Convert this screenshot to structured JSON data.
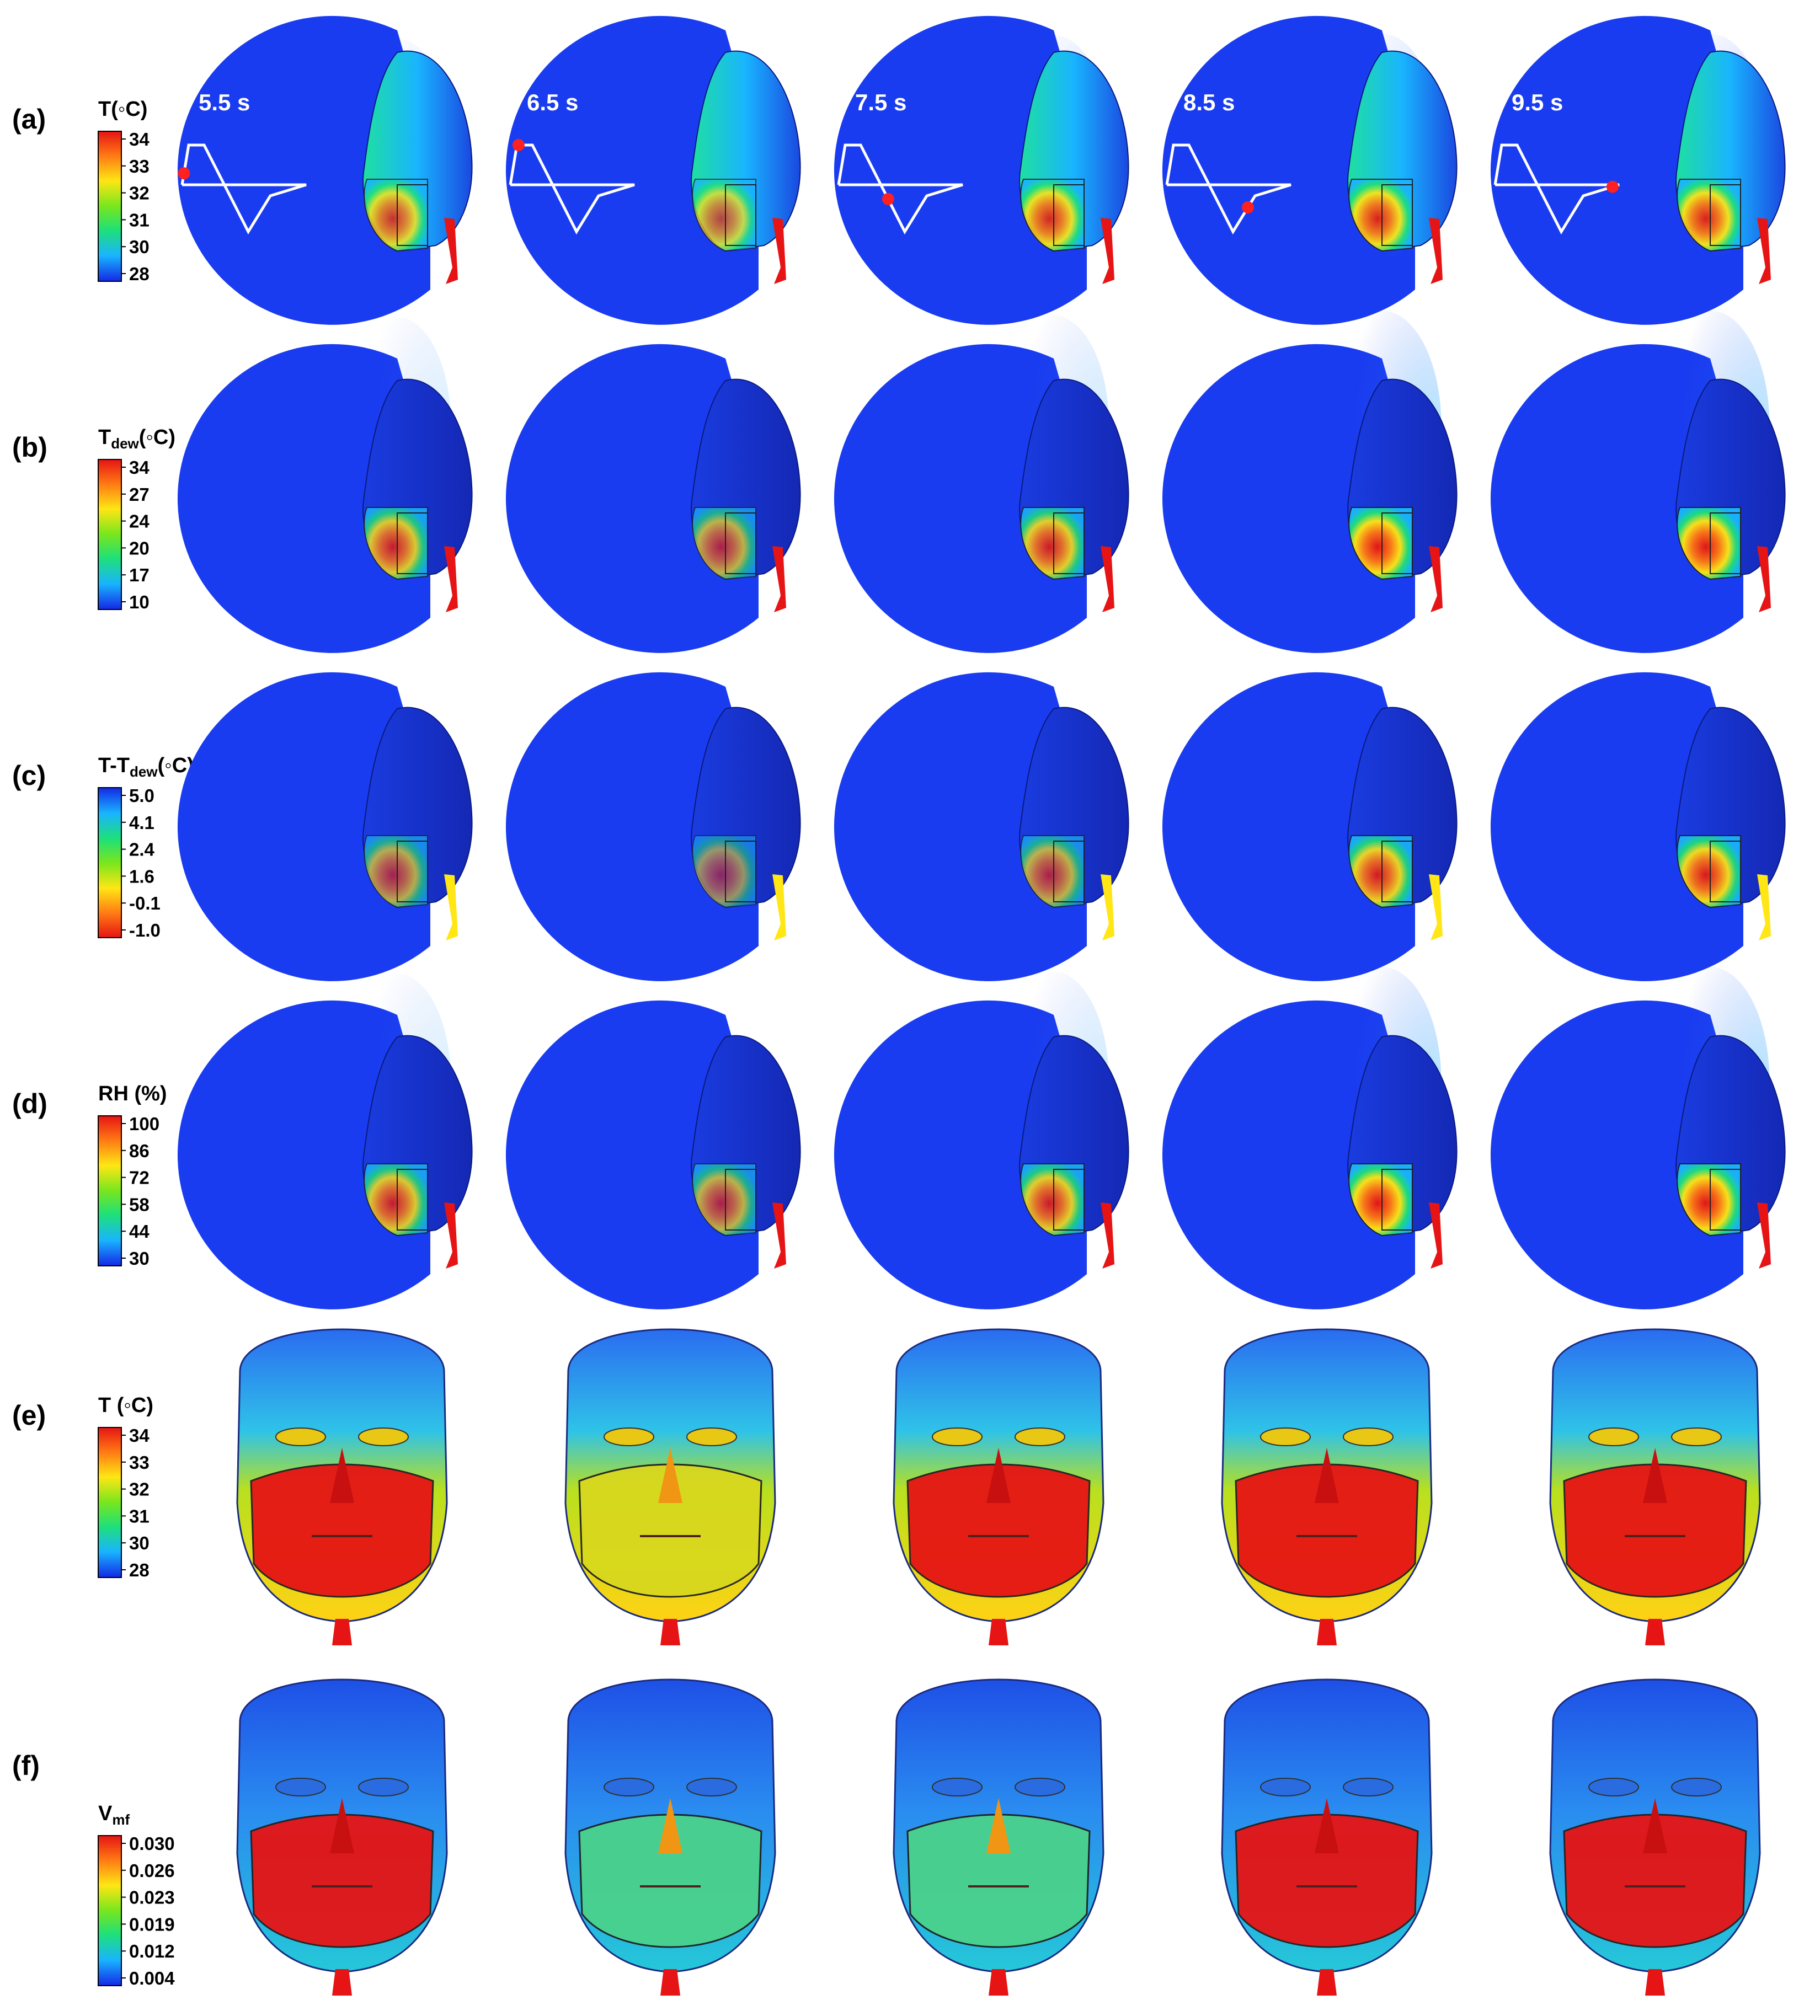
{
  "rows": [
    {
      "id": "a",
      "label": "(a)",
      "kind": "section",
      "title": "T(◦C)",
      "title_sub": "",
      "title_tail": "",
      "ticks": [
        "34",
        "33",
        "32",
        "31",
        "30",
        "28"
      ],
      "reversed": false
    },
    {
      "id": "b",
      "label": "(b)",
      "kind": "section",
      "title": "T",
      "title_sub": "dew",
      "title_tail": "(◦C)",
      "ticks": [
        "34",
        "27",
        "24",
        "20",
        "17",
        "10"
      ],
      "reversed": false
    },
    {
      "id": "c",
      "label": "(c)",
      "kind": "section",
      "title": "T-T",
      "title_sub": "dew",
      "title_tail": "(◦C)",
      "ticks": [
        "5.0",
        "4.1",
        "2.4",
        "1.6",
        "-0.1",
        "-1.0"
      ],
      "reversed": true
    },
    {
      "id": "d",
      "label": "(d)",
      "kind": "section",
      "title": "RH (%)",
      "title_sub": "",
      "title_tail": "",
      "ticks": [
        "100",
        "86",
        "72",
        "58",
        "44",
        "30"
      ],
      "reversed": false
    },
    {
      "id": "e",
      "label": "(e)",
      "kind": "face",
      "title": "T (◦C)",
      "title_sub": "",
      "title_tail": "",
      "ticks": [
        "34",
        "33",
        "32",
        "31",
        "30",
        "28"
      ],
      "reversed": false
    },
    {
      "id": "f",
      "label": "(f)",
      "kind": "face",
      "title": "V",
      "title_sub": "mf",
      "title_tail": "",
      "ticks": [
        "0.030",
        "0.026",
        "0.023",
        "0.019",
        "0.012",
        "0.004"
      ],
      "reversed": false
    }
  ],
  "time_labels": [
    "5.5 s",
    "6.5 s",
    "7.5 s",
    "8.5 s",
    "9.5 s"
  ],
  "breath_marker_phase": [
    0.05,
    0.18,
    0.5,
    0.78,
    0.97
  ],
  "heat": {
    "a": [
      0.75,
      0.6,
      0.85,
      0.9,
      0.9
    ],
    "b": [
      0.75,
      0.55,
      0.8,
      0.95,
      0.95
    ],
    "c": [
      0.5,
      0.3,
      0.55,
      0.85,
      0.9
    ],
    "d": [
      0.75,
      0.55,
      0.8,
      0.95,
      0.95
    ],
    "e": [
      1.0,
      0.7,
      0.95,
      1.0,
      1.0
    ],
    "f": [
      1.0,
      0.55,
      0.6,
      1.0,
      1.0
    ]
  },
  "colors": {
    "background": "#ffffff",
    "domain_blue": "#1a3cf0",
    "marker": "#ff2020",
    "colormap": [
      "#1428e6",
      "#19b4ff",
      "#1ee07a",
      "#78e61e",
      "#ffe614",
      "#ff7814",
      "#e61414"
    ]
  }
}
